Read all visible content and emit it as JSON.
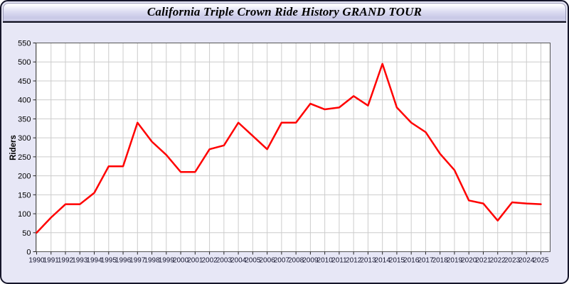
{
  "window": {
    "title": "California Triple Crown Ride History GRAND TOUR"
  },
  "colors": {
    "window_background": "#e7e7f6",
    "titlebar_gradient_top": "#fdfdff",
    "titlebar_gradient_bottom": "#c8c8e6",
    "window_border": "#15152a",
    "plot_background": "#ffffff",
    "grid_color": "#cccccc",
    "frame_color": "#555555",
    "tick_color": "#222222",
    "line_color": "#ff0000"
  },
  "chart_data": {
    "type": "line",
    "title": "California Triple Crown Ride History GRAND TOUR",
    "xlabel": "",
    "ylabel": "Riders",
    "ylim": [
      0,
      550
    ],
    "ytick_step": 50,
    "grid": true,
    "legend_position": "none",
    "categories": [
      "1990",
      "1991",
      "1992",
      "1993",
      "1994",
      "1995",
      "1996",
      "1997",
      "1998",
      "1999",
      "2000",
      "2001",
      "2002",
      "2003",
      "2004",
      "2005",
      "2006",
      "2007",
      "2008",
      "2009",
      "2010",
      "2011",
      "2012",
      "2013",
      "2014",
      "2015",
      "2016",
      "2017",
      "2018",
      "2019",
      "2020",
      "2021",
      "2022",
      "2023",
      "2024",
      "2025"
    ],
    "series": [
      {
        "name": "Riders",
        "color": "#ff0000",
        "values": [
          50,
          90,
          125,
          125,
          155,
          225,
          225,
          340,
          290,
          255,
          210,
          210,
          270,
          280,
          340,
          305,
          270,
          340,
          340,
          390,
          375,
          380,
          410,
          385,
          495,
          380,
          340,
          315,
          258,
          215,
          135,
          127,
          82,
          130,
          127,
          125
        ]
      }
    ]
  }
}
